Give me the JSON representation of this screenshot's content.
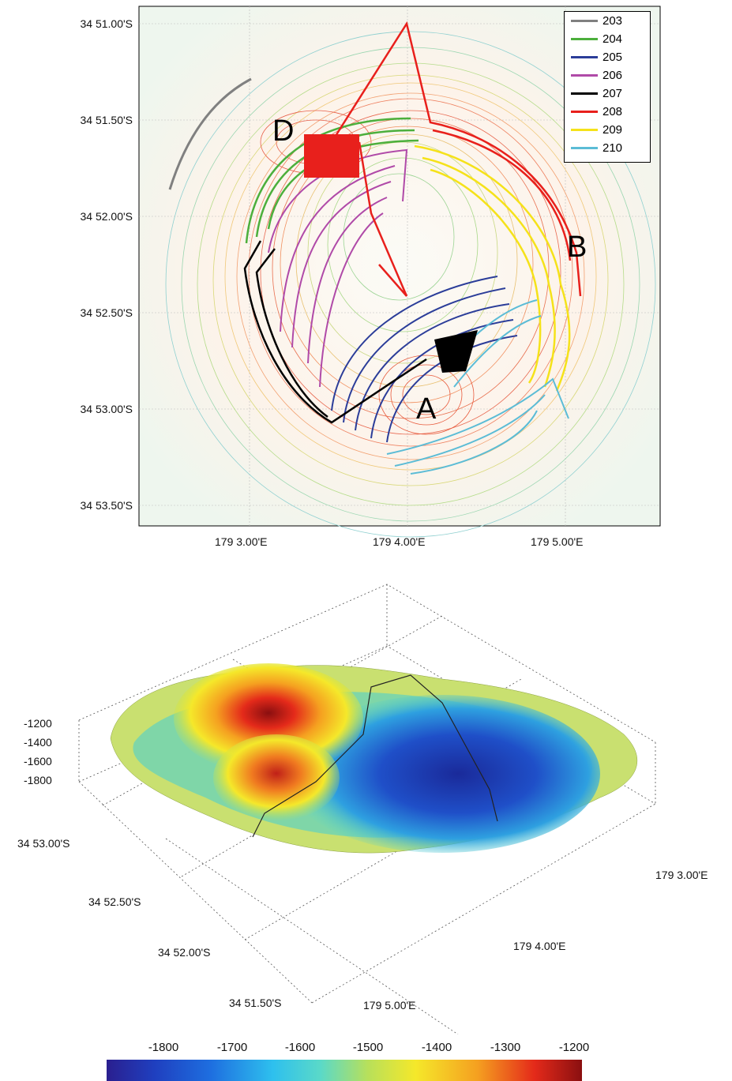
{
  "top_map": {
    "y_ticks": [
      "34 51.00'S",
      "34 51.50'S",
      "34 52.00'S",
      "34 52.50'S",
      "34 53.00'S",
      "34 53.50'S"
    ],
    "x_ticks": [
      "179  3.00'E",
      "179  4.00'E",
      "179  5.00'E"
    ],
    "site_labels": [
      "D",
      "B",
      "A"
    ],
    "legend": [
      {
        "label": "203",
        "color": "#808080"
      },
      {
        "label": "204",
        "color": "#4caf3c"
      },
      {
        "label": "205",
        "color": "#2b3d99"
      },
      {
        "label": "206",
        "color": "#b04aa8"
      },
      {
        "label": "207",
        "color": "#000000"
      },
      {
        "label": "208",
        "color": "#e8201c"
      },
      {
        "label": "209",
        "color": "#f5e21a"
      },
      {
        "label": "210",
        "color": "#5bbcd6"
      }
    ]
  },
  "bottom_map": {
    "z_ticks": [
      "-1200",
      "-1400",
      "-1600",
      "-1800"
    ],
    "y_ticks": [
      "34 53.00'S",
      "34 52.50'S",
      "34 52.00'S",
      "34 51.50'S"
    ],
    "x_ticks": [
      "179  3.00'E",
      "179  4.00'E",
      "179  5.00'E"
    ]
  },
  "colorbar": {
    "ticks": [
      "-1800",
      "-1700",
      "-1600",
      "-1500",
      "-1400",
      "-1300",
      "-1200"
    ]
  }
}
